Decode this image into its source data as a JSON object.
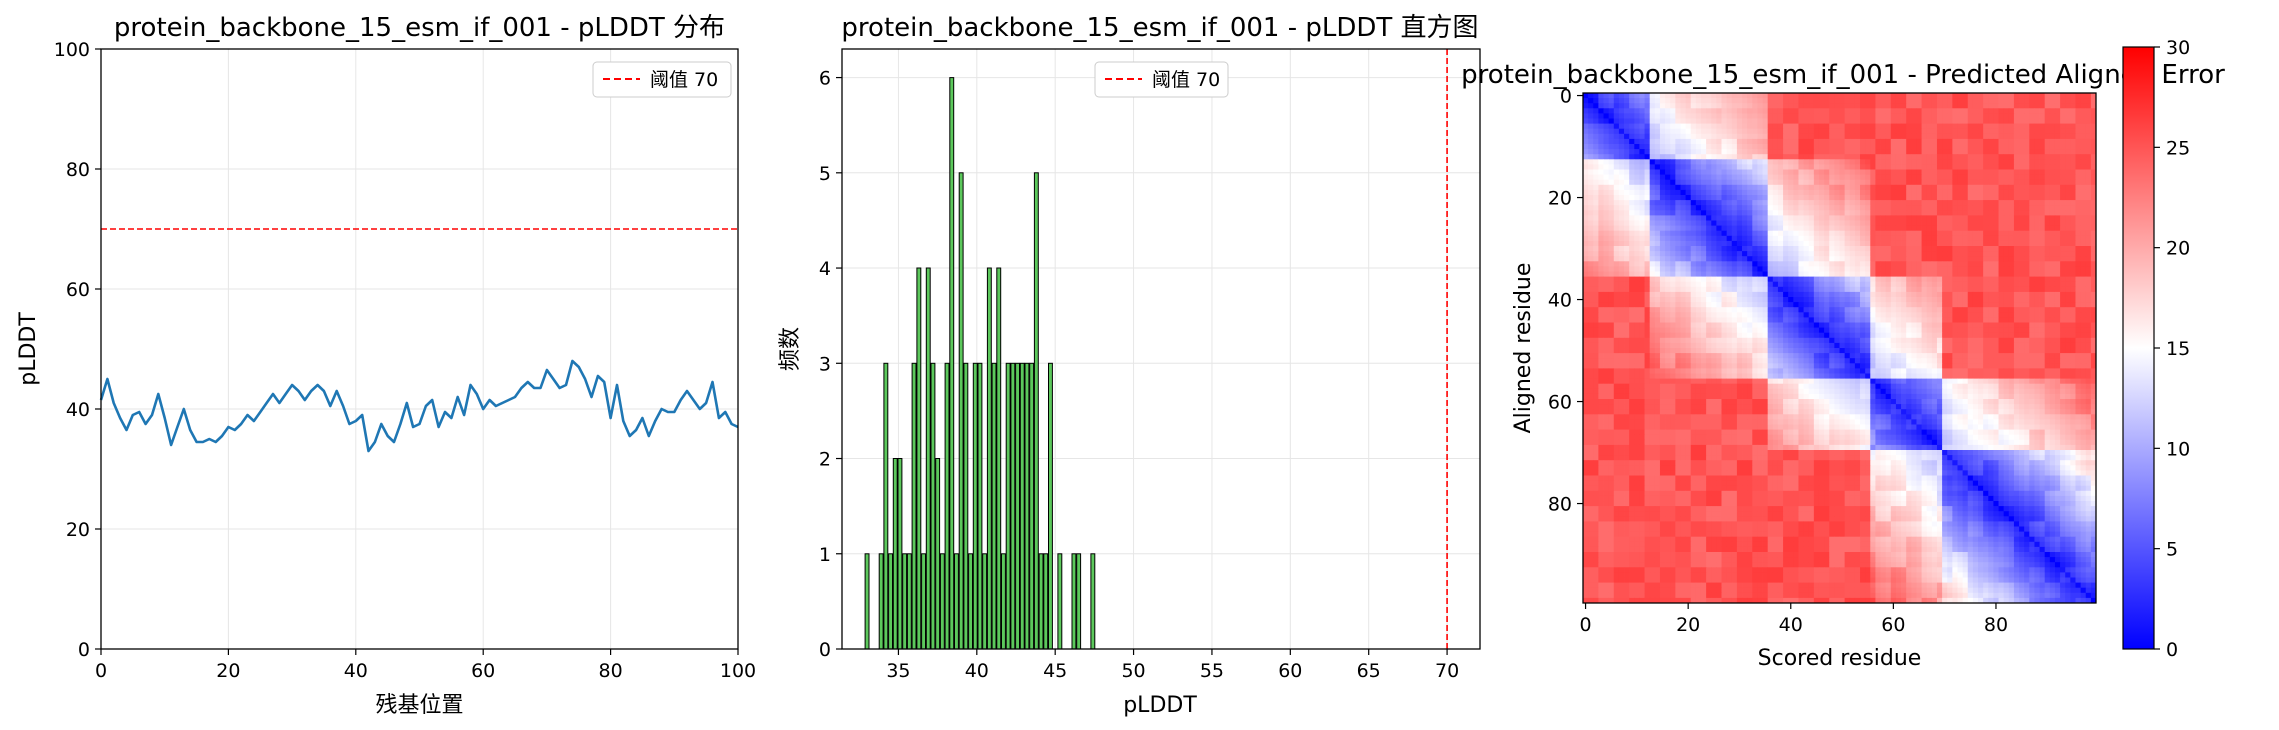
{
  "chart_data": [
    {
      "type": "line",
      "title": "protein_backbone_15_esm_if_001 - pLDDT 分布",
      "xlabel": "残基位置",
      "ylabel": "pLDDT",
      "xlim": [
        0,
        100
      ],
      "ylim": [
        0,
        100
      ],
      "x_ticks": [
        "0",
        "20",
        "40",
        "60",
        "80",
        "100"
      ],
      "y_ticks": [
        "0",
        "20",
        "40",
        "60",
        "80",
        "100"
      ],
      "grid": true,
      "legend_position": "top-right",
      "threshold": {
        "value": 70,
        "label": "阈值 70",
        "color": "#ff0000"
      },
      "series": [
        {
          "color": "#1f77b4",
          "x": [
            0,
            1,
            2,
            3,
            4,
            5,
            6,
            7,
            8,
            9,
            10,
            11,
            12,
            13,
            14,
            15,
            16,
            17,
            18,
            19,
            20,
            21,
            22,
            23,
            24,
            25,
            26,
            27,
            28,
            29,
            30,
            31,
            32,
            33,
            34,
            35,
            36,
            37,
            38,
            39,
            40,
            41,
            42,
            43,
            44,
            45,
            46,
            47,
            48,
            49,
            50,
            51,
            52,
            53,
            54,
            55,
            56,
            57,
            58,
            59,
            60,
            61,
            62,
            63,
            64,
            65,
            66,
            67,
            68,
            69,
            70,
            71,
            72,
            73,
            74,
            75,
            76,
            77,
            78,
            79,
            80,
            81,
            82,
            83,
            84,
            85,
            86,
            87,
            88,
            89,
            90,
            91,
            92,
            93,
            94,
            95,
            96,
            97,
            98,
            99,
            100
          ],
          "values": [
            41.5,
            45.0,
            41.0,
            38.5,
            36.5,
            39.0,
            39.5,
            37.5,
            39.0,
            42.5,
            38.5,
            34.0,
            37.0,
            40.0,
            36.5,
            34.5,
            34.5,
            35.0,
            34.5,
            35.5,
            37.0,
            36.5,
            37.5,
            39.0,
            38.0,
            39.5,
            41.0,
            42.5,
            41.0,
            42.5,
            44.0,
            43.0,
            41.5,
            43.0,
            44.0,
            43.0,
            40.5,
            43.0,
            40.5,
            37.5,
            38.0,
            39.0,
            33.0,
            34.5,
            37.5,
            35.5,
            34.5,
            37.5,
            41.0,
            37.0,
            37.5,
            40.5,
            41.5,
            37.0,
            39.5,
            38.5,
            42.0,
            39.0,
            44.0,
            42.5,
            40.0,
            41.5,
            40.5,
            41.0,
            41.5,
            42.0,
            43.5,
            44.5,
            43.5,
            43.5,
            46.5,
            45.0,
            43.5,
            44.0,
            48.0,
            47.0,
            45.0,
            42.0,
            45.5,
            44.5,
            38.5,
            44.0,
            38.0,
            35.5,
            36.5,
            38.5,
            35.5,
            38.0,
            40.0,
            39.5,
            39.5,
            41.5,
            43.0,
            41.5,
            40.0,
            41.0,
            44.5,
            38.5,
            39.5,
            37.5,
            37.0
          ]
        }
      ]
    },
    {
      "type": "bar",
      "title": "protein_backbone_15_esm_if_001 - pLDDT 直方图",
      "xlabel": "pLDDT",
      "ylabel": "频数",
      "xlim": [
        31.4,
        72.1
      ],
      "ylim": [
        0,
        6.3
      ],
      "x_ticks": [
        "35",
        "40",
        "45",
        "50",
        "55",
        "60",
        "65",
        "70"
      ],
      "y_ticks": [
        "0",
        "1",
        "2",
        "3",
        "4",
        "5",
        "6"
      ],
      "grid": true,
      "legend_position": "top-center",
      "bar_color": "#5cc85c",
      "bar_width": 0.25,
      "threshold": {
        "value": 70,
        "label": "阈值 70",
        "color": "#ff0000"
      },
      "x": [
        33.0,
        33.9,
        34.2,
        34.5,
        34.8,
        35.1,
        35.4,
        35.7,
        36.0,
        36.3,
        36.6,
        36.9,
        37.2,
        37.5,
        37.8,
        38.1,
        38.4,
        38.7,
        39.0,
        39.3,
        39.6,
        39.9,
        40.2,
        40.5,
        40.8,
        41.1,
        41.4,
        41.7,
        42.0,
        42.3,
        42.6,
        42.9,
        43.2,
        43.5,
        43.8,
        44.1,
        44.4,
        44.7,
        45.3,
        46.2,
        46.5,
        47.4
      ],
      "values": [
        1,
        1,
        3,
        1,
        2,
        2,
        1,
        1,
        3,
        4,
        1,
        4,
        3,
        2,
        1,
        3,
        6,
        1,
        5,
        3,
        1,
        3,
        3,
        1,
        4,
        3,
        4,
        1,
        3,
        3,
        3,
        3,
        3,
        3,
        5,
        1,
        1,
        3,
        1,
        1,
        1,
        1
      ]
    },
    {
      "type": "heatmap",
      "title": "protein_backbone_15_esm_if_001 - Predicted Aligned Error",
      "xlabel": "Scored residue",
      "ylabel": "Aligned residue",
      "size": 100,
      "x_ticks": [
        "0",
        "20",
        "40",
        "60",
        "80"
      ],
      "y_ticks": [
        "0",
        "20",
        "40",
        "60",
        "80"
      ],
      "colormap": "bwr",
      "vmin": 0,
      "vmax": 30,
      "colorbar_ticks": [
        "0",
        "5",
        "10",
        "15",
        "20",
        "25",
        "30"
      ],
      "domains": [
        [
          0,
          12
        ],
        [
          13,
          35
        ],
        [
          36,
          55
        ],
        [
          56,
          69
        ],
        [
          70,
          99
        ]
      ]
    }
  ]
}
